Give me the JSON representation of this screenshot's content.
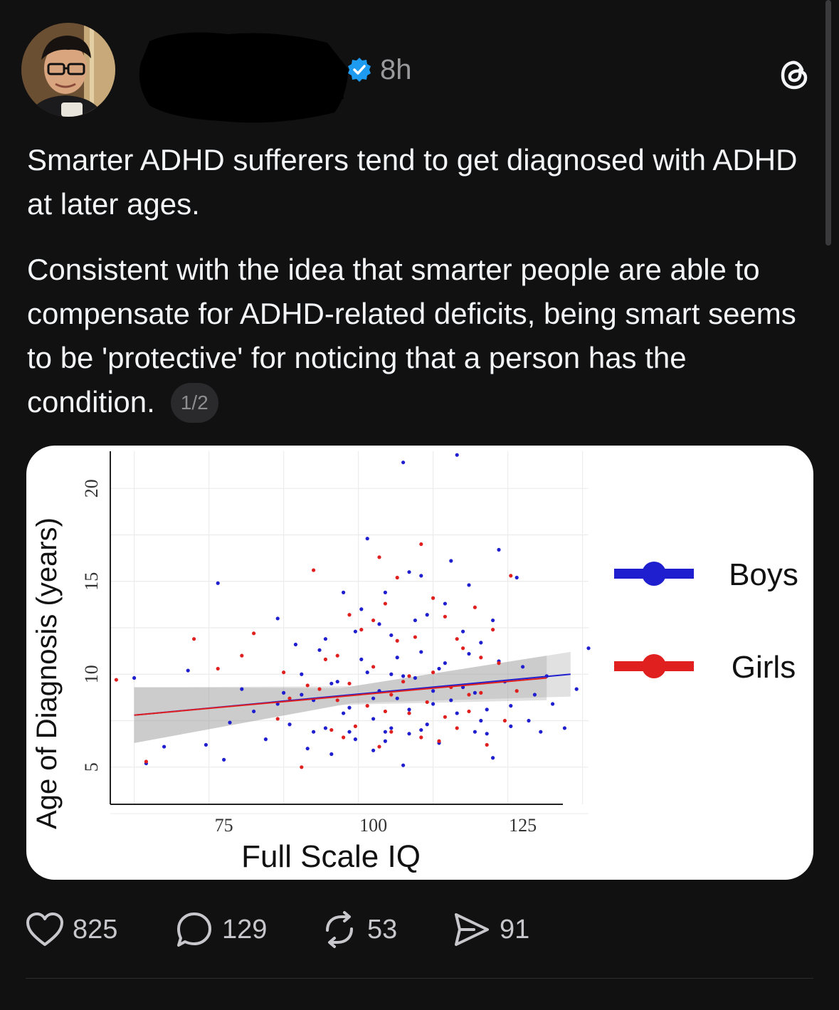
{
  "post": {
    "time": "8h",
    "paragraph1": "Smarter ADHD sufferers tend to get diagnosed with ADHD at later ages.",
    "paragraph2": "Consistent with the idea that smarter people are able to compensate for ADHD-related deficits, being smart seems to be 'protective' for noticing that a person has the condition.",
    "pager": "1/2",
    "verified_color": "#1d9bf0"
  },
  "actions": {
    "likes": "825",
    "replies": "129",
    "reposts": "53",
    "shares": "91"
  },
  "chart_data": {
    "type": "scatter",
    "xlabel": "Full Scale IQ",
    "ylabel": "Age of Diagnosis (years)",
    "x_ticks": [
      75,
      100,
      125
    ],
    "y_ticks": [
      5,
      10,
      15,
      20
    ],
    "xlim": [
      56,
      136
    ],
    "ylim": [
      3,
      22
    ],
    "grid": true,
    "legend_position": "right",
    "series": [
      {
        "name": "Boys",
        "color": "#1f1fcf",
        "trend": {
          "x": [
            60,
            133
          ],
          "y": [
            7.8,
            10.0
          ]
        },
        "points": [
          [
            105,
            21.4
          ],
          [
            114,
            21.8
          ],
          [
            60,
            9.8
          ],
          [
            62,
            5.2
          ],
          [
            65,
            6.1
          ],
          [
            69,
            10.2
          ],
          [
            72,
            6.2
          ],
          [
            74,
            14.9
          ],
          [
            75,
            5.4
          ],
          [
            76,
            7.4
          ],
          [
            78,
            9.2
          ],
          [
            80,
            8.0
          ],
          [
            82,
            6.5
          ],
          [
            84,
            13.0
          ],
          [
            85,
            9.0
          ],
          [
            86,
            7.3
          ],
          [
            88,
            10.0
          ],
          [
            89,
            6.0
          ],
          [
            90,
            8.6
          ],
          [
            91,
            11.3
          ],
          [
            92,
            7.1
          ],
          [
            93,
            5.7
          ],
          [
            94,
            9.6
          ],
          [
            95,
            14.4
          ],
          [
            96,
            8.2
          ],
          [
            97,
            6.5
          ],
          [
            98,
            10.8
          ],
          [
            99,
            17.3
          ],
          [
            100,
            7.6
          ],
          [
            101,
            9.1
          ],
          [
            102,
            6.4
          ],
          [
            103,
            12.1
          ],
          [
            104,
            8.7
          ],
          [
            105,
            5.1
          ],
          [
            106,
            15.5
          ],
          [
            107,
            9.8
          ],
          [
            108,
            7.0
          ],
          [
            109,
            13.2
          ],
          [
            110,
            8.4
          ],
          [
            111,
            6.3
          ],
          [
            112,
            10.6
          ],
          [
            113,
            16.1
          ],
          [
            114,
            7.9
          ],
          [
            115,
            9.3
          ],
          [
            116,
            14.8
          ],
          [
            117,
            6.9
          ],
          [
            118,
            11.7
          ],
          [
            119,
            8.1
          ],
          [
            120,
            5.5
          ],
          [
            121,
            16.7
          ],
          [
            122,
            9.6
          ],
          [
            123,
            7.2
          ],
          [
            124,
            15.2
          ],
          [
            125,
            10.4
          ],
          [
            126,
            7.5
          ],
          [
            127,
            8.9
          ],
          [
            128,
            6.9
          ],
          [
            129,
            9.9
          ],
          [
            130,
            8.4
          ],
          [
            132,
            7.1
          ],
          [
            134,
            9.2
          ],
          [
            136,
            11.4
          ],
          [
            88,
            8.9
          ],
          [
            92,
            11.9
          ],
          [
            96,
            6.9
          ],
          [
            99,
            10.1
          ],
          [
            101,
            12.7
          ],
          [
            103,
            7.1
          ],
          [
            104,
            10.9
          ],
          [
            106,
            8.1
          ],
          [
            108,
            11.2
          ],
          [
            110,
            9.1
          ],
          [
            95,
            7.9
          ],
          [
            97,
            12.3
          ],
          [
            100,
            8.7
          ],
          [
            102,
            6.9
          ],
          [
            105,
            9.9
          ],
          [
            107,
            12.9
          ],
          [
            109,
            7.3
          ],
          [
            111,
            10.3
          ],
          [
            113,
            8.6
          ],
          [
            115,
            12.3
          ],
          [
            117,
            9.0
          ],
          [
            119,
            6.8
          ],
          [
            121,
            10.7
          ],
          [
            123,
            8.3
          ],
          [
            93,
            9.5
          ],
          [
            98,
            13.5
          ],
          [
            112,
            13.8
          ],
          [
            116,
            11.1
          ],
          [
            84,
            8.4
          ],
          [
            87,
            11.6
          ],
          [
            90,
            6.9
          ],
          [
            100,
            5.9
          ],
          [
            103,
            10.0
          ],
          [
            106,
            6.8
          ],
          [
            118,
            7.5
          ],
          [
            120,
            12.9
          ],
          [
            102,
            14.4
          ],
          [
            108,
            15.3
          ]
        ]
      },
      {
        "name": "Girls",
        "color": "#e01f1f",
        "trend": {
          "x": [
            60,
            129
          ],
          "y": [
            7.8,
            9.8
          ]
        },
        "points": [
          [
            57,
            9.7
          ],
          [
            62,
            5.3
          ],
          [
            70,
            11.9
          ],
          [
            74,
            10.3
          ],
          [
            78,
            11.0
          ],
          [
            80,
            12.2
          ],
          [
            84,
            7.6
          ],
          [
            86,
            8.7
          ],
          [
            88,
            5.0
          ],
          [
            90,
            15.6
          ],
          [
            91,
            9.2
          ],
          [
            93,
            7.0
          ],
          [
            94,
            11.0
          ],
          [
            96,
            9.5
          ],
          [
            97,
            7.2
          ],
          [
            98,
            12.4
          ],
          [
            99,
            8.3
          ],
          [
            100,
            10.4
          ],
          [
            101,
            6.1
          ],
          [
            102,
            13.8
          ],
          [
            103,
            8.9
          ],
          [
            104,
            15.2
          ],
          [
            105,
            9.6
          ],
          [
            106,
            7.9
          ],
          [
            107,
            12.0
          ],
          [
            108,
            17.0
          ],
          [
            109,
            8.5
          ],
          [
            110,
            10.1
          ],
          [
            111,
            6.4
          ],
          [
            112,
            13.1
          ],
          [
            113,
            9.3
          ],
          [
            114,
            7.1
          ],
          [
            115,
            11.4
          ],
          [
            116,
            8.0
          ],
          [
            117,
            13.6
          ],
          [
            118,
            9.0
          ],
          [
            119,
            6.2
          ],
          [
            120,
            12.4
          ],
          [
            121,
            10.6
          ],
          [
            122,
            7.5
          ],
          [
            123,
            15.3
          ],
          [
            124,
            9.1
          ],
          [
            92,
            10.8
          ],
          [
            95,
            6.6
          ],
          [
            100,
            12.9
          ],
          [
            102,
            8.0
          ],
          [
            104,
            11.8
          ],
          [
            106,
            9.9
          ],
          [
            108,
            6.6
          ],
          [
            110,
            14.1
          ],
          [
            112,
            7.7
          ],
          [
            114,
            11.9
          ],
          [
            116,
            8.9
          ],
          [
            118,
            10.9
          ],
          [
            101,
            16.3
          ],
          [
            96,
            13.2
          ],
          [
            89,
            9.4
          ],
          [
            85,
            10.1
          ],
          [
            94,
            8.6
          ],
          [
            103,
            6.9
          ]
        ]
      }
    ]
  }
}
